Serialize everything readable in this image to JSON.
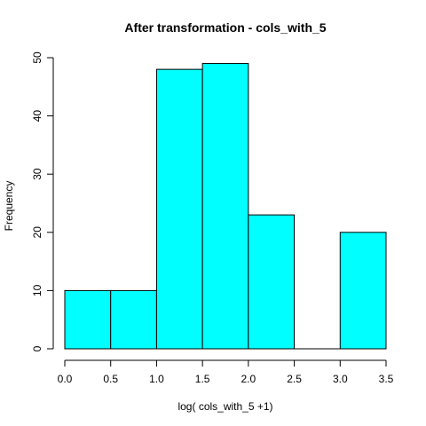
{
  "chart_data": {
    "type": "bar",
    "title": "After transformation -  cols_with_5",
    "xlabel": "log( cols_with_5 +1)",
    "ylabel": "Frequency",
    "bins": [
      {
        "x0": 0.0,
        "x1": 0.5,
        "count": 10
      },
      {
        "x0": 0.5,
        "x1": 1.0,
        "count": 10
      },
      {
        "x0": 1.0,
        "x1": 1.5,
        "count": 48
      },
      {
        "x0": 1.5,
        "x1": 2.0,
        "count": 49
      },
      {
        "x0": 2.0,
        "x1": 2.5,
        "count": 23
      },
      {
        "x0": 2.5,
        "x1": 3.0,
        "count": 0
      },
      {
        "x0": 3.0,
        "x1": 3.5,
        "count": 20
      }
    ],
    "xlim": [
      0.0,
      3.5
    ],
    "ylim": [
      0,
      50
    ],
    "xticks": [
      "0.0",
      "0.5",
      "1.0",
      "1.5",
      "2.0",
      "2.5",
      "3.0",
      "3.5"
    ],
    "yticks": [
      "0",
      "10",
      "20",
      "30",
      "40",
      "50"
    ],
    "bar_color": "#00FFFF",
    "edge_color": "#000000",
    "grid": false,
    "legend": "none"
  }
}
